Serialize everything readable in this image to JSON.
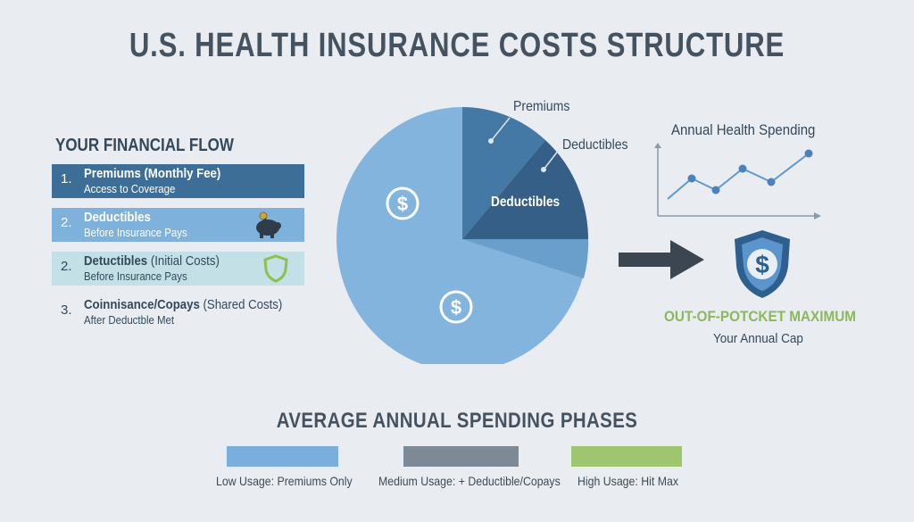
{
  "title": "U.S. HEALTH INSURANCE COSTS STRUCTURE",
  "financial_flow": {
    "heading": "YOUR FINANCIAL FLOW",
    "steps": [
      {
        "num": "1.",
        "title": "Premiums (Monthly Fee)",
        "sub": "Access to Coverage",
        "color": "#3d6e98"
      },
      {
        "num": "2.",
        "title": "Deductibles",
        "sub": "Before Insurance Pays",
        "icon": "piggy-bank-icon",
        "color": "#7fb1dd"
      },
      {
        "num": "2.",
        "title_bold": "Detuctibles",
        "title_rest": " (Initial Costs)",
        "sub": "Before Insurance Pays",
        "icon": "shield-icon",
        "color": "#c3e0e6"
      },
      {
        "num": "3.",
        "title_bold": "Coinnisance/Copays",
        "title_rest": " (Shared Costs)",
        "sub": "After Deductble Met"
      }
    ]
  },
  "pie": {
    "label_premiums": "Premiums",
    "label_deductibles": "Deductibles",
    "inside_label": "Deductibles",
    "icons": [
      "dollar-icon",
      "dollar-icon"
    ],
    "colors": {
      "large": "#82b4de",
      "premiums": "#4479a6",
      "deductibles": "#355f87"
    }
  },
  "annual_spending": {
    "title": "Annual Health Spending",
    "icon": "line-chart-icon",
    "color": "#5e98cf"
  },
  "out_of_pocket": {
    "title": "OUT-OF-POTCKET MAXIMUM",
    "subtitle": "Your Annual Cap",
    "icon": "shield-dollar-icon",
    "color": "#8cb85c"
  },
  "arrow_icon": "right-arrow-icon",
  "phases": {
    "title": "AVERAGE ANNUAL SPENDING PHASES",
    "items": [
      {
        "label": "Low Usage: Premiums Only",
        "color": "#7aaedc"
      },
      {
        "label": "Medium Usage: + Deductible/Copays",
        "color": "#7d8a96"
      },
      {
        "label": "High Usage: Hit Max",
        "color": "#9dc66f"
      }
    ]
  }
}
